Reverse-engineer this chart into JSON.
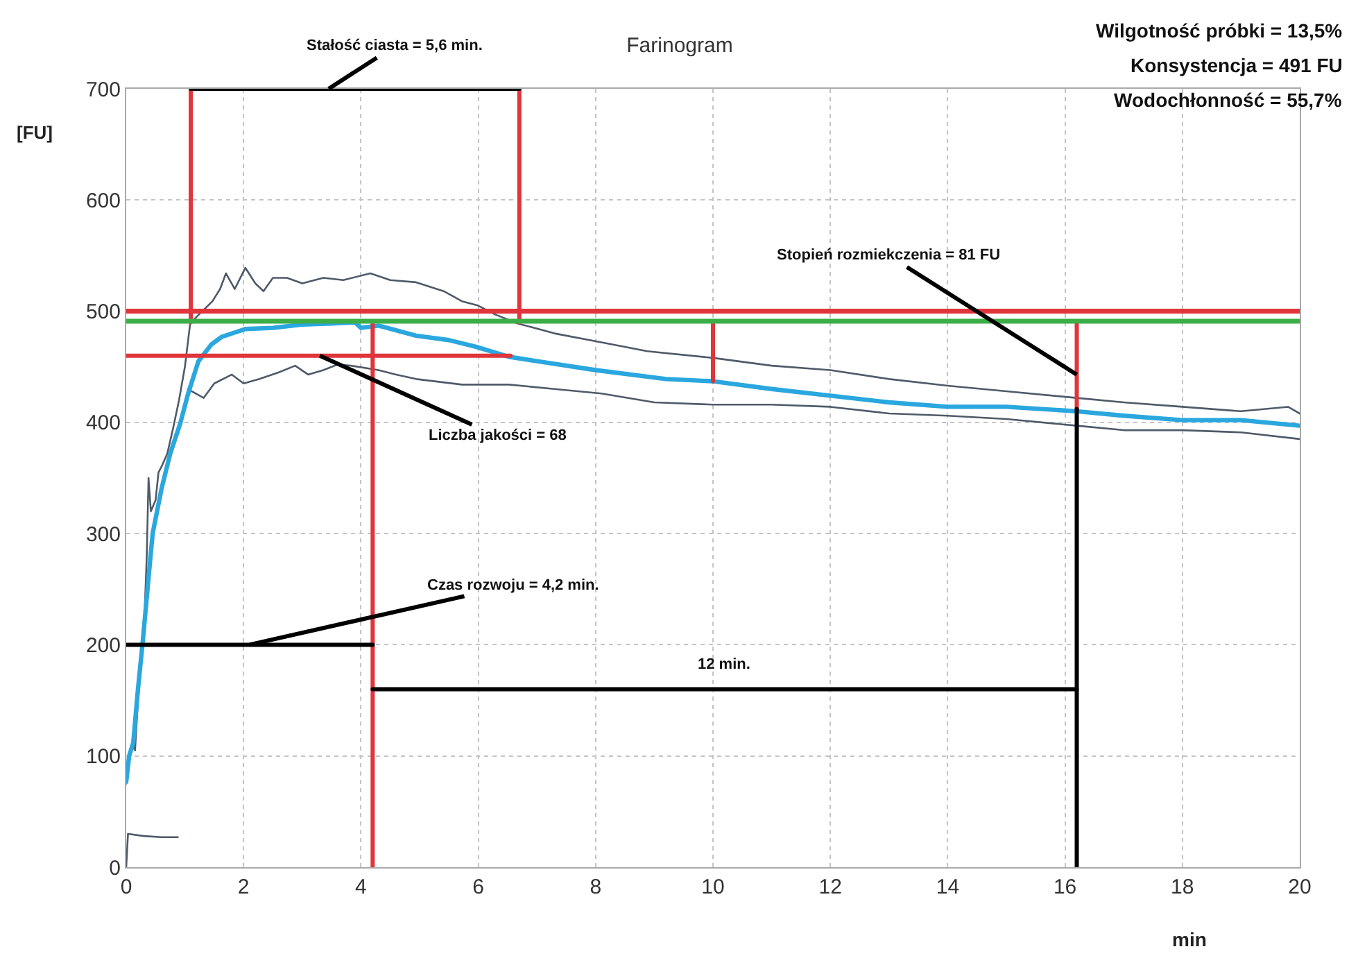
{
  "chart_data": {
    "type": "line",
    "title": "Farinogram",
    "xlabel": "min",
    "ylabel": "[FU]",
    "xlim": [
      0,
      20
    ],
    "xticks": [
      0,
      2,
      4,
      6,
      8,
      10,
      12,
      14,
      16,
      18,
      20
    ],
    "ylim": [
      0,
      700
    ],
    "yticks": [
      0,
      100,
      200,
      300,
      400,
      500,
      600,
      700
    ],
    "grid": true,
    "marker": "none",
    "series": [
      {
        "color": "#4f5a69",
        "x": [
          0,
          0.05,
          0.1,
          0.15,
          0.2,
          0.3,
          0.35,
          0.38,
          0.42,
          0.5,
          0.55,
          0.6,
          0.7,
          0.8,
          0.9,
          1.0,
          1.09,
          1.2,
          1.47,
          1.6,
          1.7,
          1.85,
          2.03,
          2.2,
          2.34,
          2.5,
          2.74,
          3.0,
          3.36,
          3.7,
          4.16,
          4.5,
          4.94,
          5.41,
          5.72,
          6.0,
          6.29,
          6.67,
          7.3,
          8.1,
          8.88,
          10,
          11,
          12,
          13,
          14,
          15,
          16.2,
          17,
          18,
          19,
          19.8,
          20
        ],
        "values": [
          75,
          95,
          110,
          105,
          150,
          210,
          280,
          350,
          320,
          330,
          355,
          360,
          372,
          395,
          420,
          450,
          489,
          495,
          509,
          520,
          534,
          520,
          539,
          525,
          518,
          530,
          530,
          525,
          530,
          528,
          534,
          528,
          526,
          518,
          509,
          505,
          497,
          489,
          480,
          472,
          464,
          458,
          451,
          447,
          439,
          433,
          428,
          422,
          418,
          414,
          410,
          414,
          408
        ]
      },
      {
        "color": "#4f5a69",
        "x": [
          1.05,
          1.32,
          1.5,
          1.8,
          2.0,
          2.27,
          2.6,
          2.88,
          3.1,
          3.36,
          3.6,
          3.83,
          4.3,
          4.6,
          4.94,
          5.72,
          6.52,
          7.3,
          8.1,
          9.0,
          10,
          11,
          12,
          13,
          14,
          15,
          16.2,
          17,
          18,
          19,
          20
        ],
        "values": [
          430,
          422,
          435,
          443,
          435,
          439,
          445,
          451,
          443,
          447,
          452,
          451,
          447,
          443,
          439,
          434,
          434,
          430,
          426,
          418,
          416,
          416,
          414,
          408,
          406,
          403,
          397,
          393,
          393,
          391,
          385
        ]
      },
      {
        "color": "#4f5a69",
        "x": [
          0,
          0.03,
          0.3,
          0.6,
          0.88
        ],
        "values": [
          0,
          30,
          28,
          27,
          27
        ]
      },
      {
        "color": "#2aa7de",
        "x": [
          0,
          0.05,
          0.12,
          0.2,
          0.28,
          0.38,
          0.45,
          0.6,
          0.75,
          0.92,
          1.05,
          1.23,
          1.45,
          1.63,
          2.03,
          2.5,
          3.0,
          3.5,
          3.9,
          4.0,
          4.3,
          4.94,
          5.5,
          5.96,
          6.52,
          7,
          8,
          9.2,
          10,
          11,
          12,
          13,
          14,
          15,
          16.2,
          17,
          18,
          19,
          20
        ],
        "values": [
          77,
          100,
          112,
          160,
          202,
          260,
          300,
          340,
          372,
          399,
          425,
          455,
          470,
          477,
          484,
          485,
          488,
          489,
          490,
          485,
          487,
          478,
          474,
          468,
          459,
          455,
          447,
          439,
          437,
          430,
          424,
          418,
          414,
          414,
          410,
          406,
          402,
          402,
          397
        ]
      },
      {
        "color": "#e0353b",
        "x": [
          1.1,
          1.1
        ],
        "values": [
          490,
          700
        ]
      },
      {
        "color": "#e0353b",
        "x": [
          6.7,
          6.7
        ],
        "values": [
          490,
          700
        ]
      },
      {
        "color": "#000000",
        "x": [
          1.1,
          6.7
        ],
        "values": [
          700,
          700
        ]
      },
      {
        "color": "#e0353b",
        "x": [
          0,
          6.55
        ],
        "values": [
          460,
          460
        ]
      },
      {
        "color": "#e0353b",
        "x": [
          4.2,
          4.2
        ],
        "values": [
          0,
          490
        ]
      },
      {
        "color": "#000000",
        "x": [
          0,
          4.2
        ],
        "values": [
          200,
          200
        ]
      },
      {
        "color": "#000000",
        "x": [
          4.2,
          16.2
        ],
        "values": [
          160,
          160
        ]
      },
      {
        "color": "#e0353b",
        "x": [
          10,
          10
        ],
        "values": [
          491,
          437
        ]
      },
      {
        "color": "#e0353b",
        "x": [
          16.2,
          16.2
        ],
        "values": [
          491,
          412
        ]
      },
      {
        "color": "#000000",
        "x": [
          16.2,
          16.2
        ],
        "values": [
          412,
          0
        ]
      }
    ],
    "ref_lines": [
      {
        "axis": "y",
        "value": 500,
        "color": "#e0353b"
      },
      {
        "axis": "y",
        "value": 491,
        "color": "#3cae48"
      }
    ],
    "annotations": [
      "Wilgotność próbki = 13,5%",
      "Konsystencja = 491 FU",
      "Wodochłonność = 55,7%",
      {
        "text": "Stałość ciasta = 5,6 min.",
        "x": 3.45,
        "y": 700
      },
      {
        "text": "Liczba jakości = 68",
        "x": 3.3,
        "y": 460
      },
      {
        "text": "Stopień rozmiekczenia = 81 FU",
        "x": 16.2,
        "y": 443
      },
      {
        "text": "Czas rozwoju = 4,2 min.",
        "x": 2.1,
        "y": 200
      },
      {
        "text": "12 min.",
        "x": 10.2,
        "y": 160
      }
    ]
  }
}
